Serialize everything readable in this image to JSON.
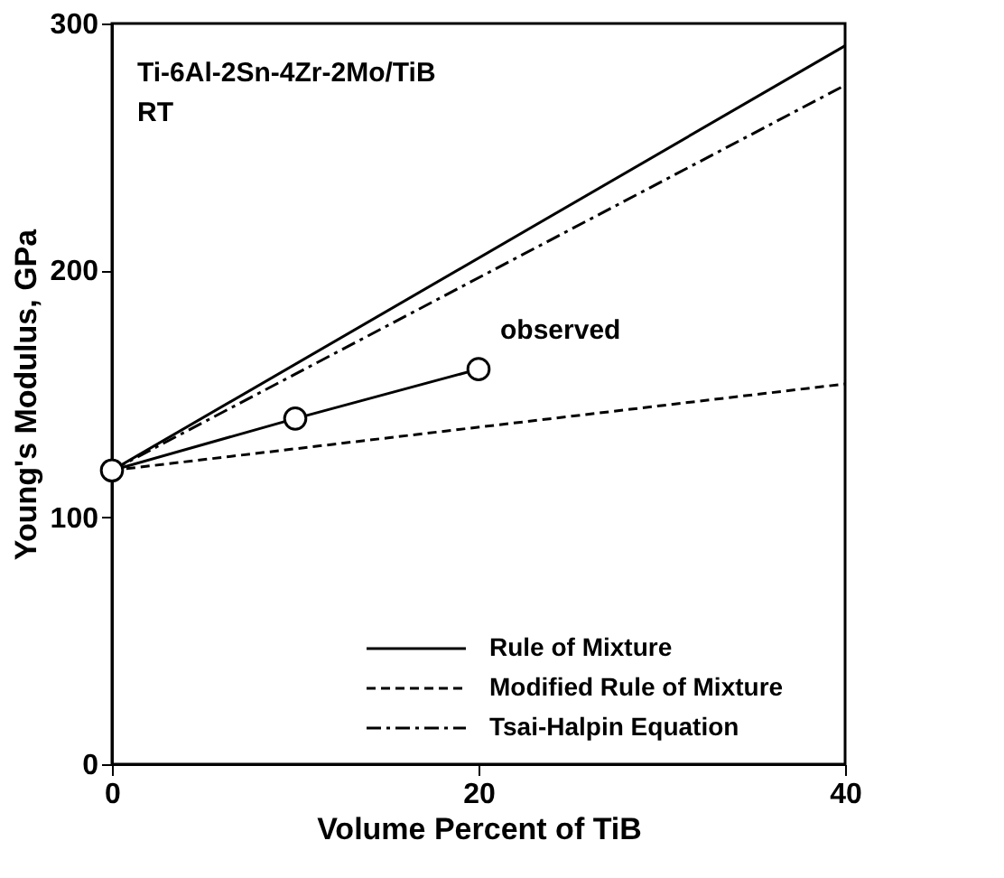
{
  "chart_data": {
    "type": "line",
    "xlabel": "Volume Percent of TiB",
    "ylabel": "Young's Modulus, GPa",
    "xlim": [
      0,
      40
    ],
    "ylim": [
      0,
      300
    ],
    "xticks": [
      0,
      20,
      40
    ],
    "yticks": [
      0,
      100,
      200,
      300
    ],
    "grid": false,
    "legend": "bottom right",
    "annotations": [
      "Ti-6Al-2Sn-4Zr-2Mo/TiB",
      "RT"
    ],
    "series": [
      {
        "name": "Rule of Mixture",
        "color": "#000000",
        "line_style": "solid",
        "x": [
          0,
          40
        ],
        "values": [
          119,
          291
        ]
      },
      {
        "name": "Modified Rule of Mixture",
        "color": "#000000",
        "line_style": "dashed",
        "x": [
          0,
          40
        ],
        "values": [
          119,
          154
        ]
      },
      {
        "name": "Tsai-Halpin Equation",
        "color": "#000000",
        "line_style": "dashdot",
        "x": [
          0,
          40
        ],
        "values": [
          119,
          275
        ]
      },
      {
        "name": "observed",
        "color": "#000000",
        "line_style": "solid",
        "marker": "circle",
        "x": [
          0,
          10,
          20
        ],
        "values": [
          119,
          140,
          160
        ]
      }
    ]
  }
}
